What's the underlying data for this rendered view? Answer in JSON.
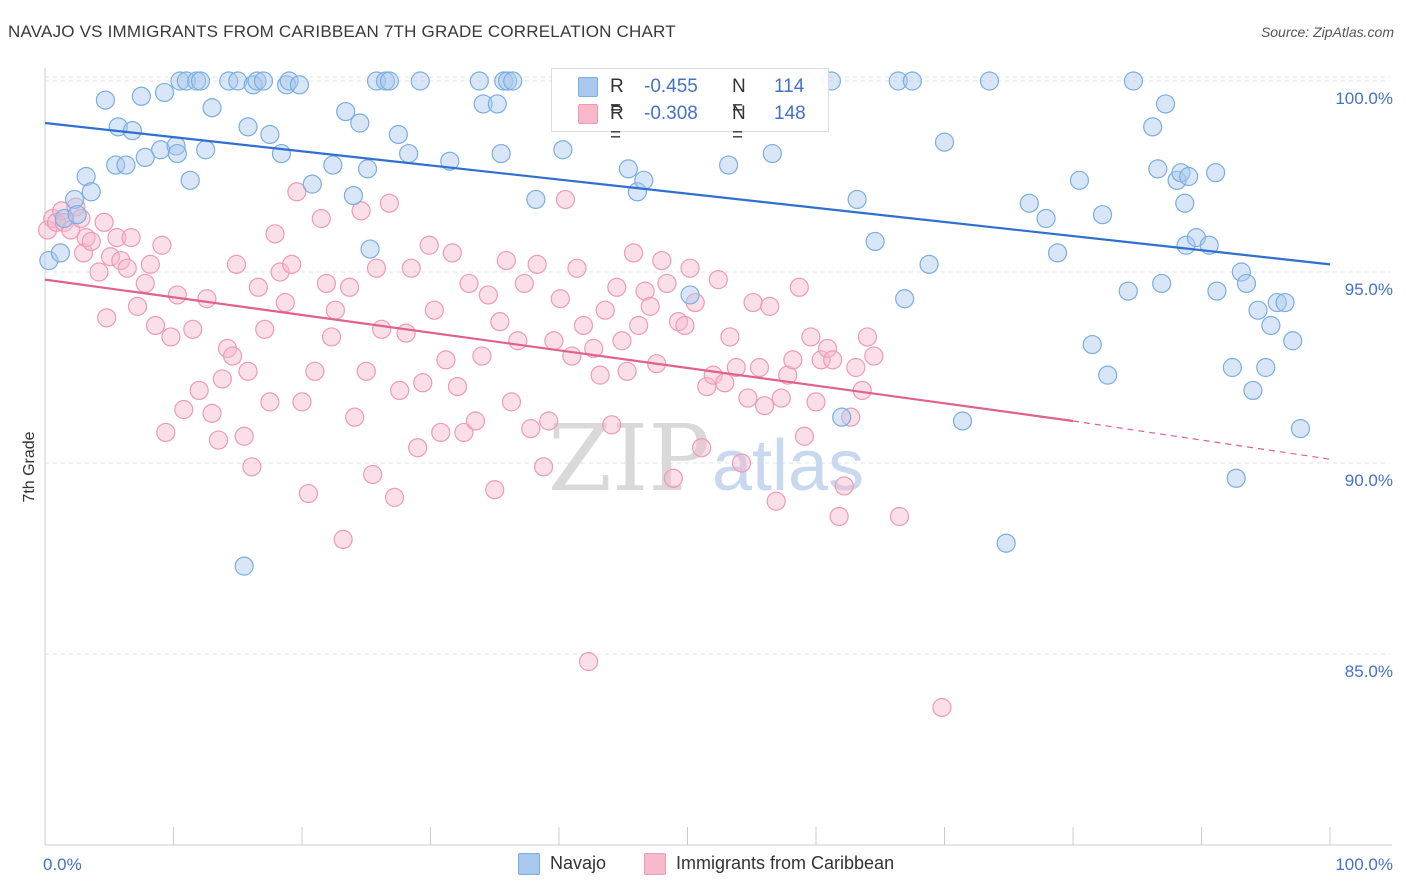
{
  "header": {
    "title": "NAVAJO VS IMMIGRANTS FROM CARIBBEAN 7TH GRADE CORRELATION CHART",
    "source": "Source: ZipAtlas.com"
  },
  "watermark": {
    "zip": "ZIP",
    "atlas": "atlas"
  },
  "colors": {
    "navajo_fill": "#a8c8ee",
    "navajo_stroke": "#7aaee0",
    "navajo_line": "#2f6fcf",
    "carib_fill": "#f7b8cc",
    "carib_stroke": "#ee9ab6",
    "carib_line": "#e0608e",
    "tick_text": "#4472c4",
    "grid": "#e2e2e2"
  },
  "legend_top": {
    "rows": [
      {
        "r_label": "R =",
        "r_value": "-0.455",
        "n_label": "N =",
        "n_value": "114"
      },
      {
        "r_label": "R =",
        "r_value": "-0.308",
        "n_label": "N =",
        "n_value": "148"
      }
    ]
  },
  "legend_bottom": {
    "items": [
      "Navajo",
      "Immigrants from Caribbean"
    ]
  },
  "chart_data": {
    "type": "scatter",
    "title": "NAVAJO VS IMMIGRANTS FROM CARIBBEAN 7TH GRADE CORRELATION CHART",
    "xlabel": "",
    "ylabel": "7th Grade",
    "xlim": [
      0,
      100
    ],
    "ylim": [
      80.5,
      100.5
    ],
    "x_tick_labels": [
      "0.0%",
      "100.0%"
    ],
    "y_ticks": [
      85,
      90,
      95,
      100
    ],
    "y_tick_labels": [
      "85.0%",
      "90.0%",
      "95.0%",
      "100.0%"
    ],
    "grid": true,
    "legend_position": "top-center",
    "series": [
      {
        "name": "Navajo",
        "trend": {
          "x": [
            0,
            100
          ],
          "y": [
            98.9,
            95.2
          ]
        },
        "points": [
          [
            0.3,
            95.3
          ],
          [
            1.2,
            95.5
          ],
          [
            1.5,
            96.4
          ],
          [
            2.3,
            96.9
          ],
          [
            2.5,
            96.5
          ],
          [
            3.2,
            97.5
          ],
          [
            3.6,
            97.1
          ],
          [
            4.7,
            99.5
          ],
          [
            5.5,
            97.8
          ],
          [
            5.7,
            98.8
          ],
          [
            6.3,
            97.8
          ],
          [
            6.8,
            98.7
          ],
          [
            7.5,
            99.6
          ],
          [
            7.8,
            98.0
          ],
          [
            9.0,
            98.2
          ],
          [
            9.3,
            99.7
          ],
          [
            10.2,
            98.3
          ],
          [
            10.3,
            98.1
          ],
          [
            10.5,
            100.0
          ],
          [
            11.0,
            100.0
          ],
          [
            11.3,
            97.4
          ],
          [
            11.8,
            100.0
          ],
          [
            12.1,
            100.0
          ],
          [
            12.5,
            98.2
          ],
          [
            13.0,
            99.3
          ],
          [
            14.3,
            100.0
          ],
          [
            15.0,
            100.0
          ],
          [
            15.5,
            87.3
          ],
          [
            15.8,
            98.8
          ],
          [
            16.2,
            99.9
          ],
          [
            16.5,
            100.0
          ],
          [
            17.0,
            100.0
          ],
          [
            17.5,
            98.6
          ],
          [
            18.4,
            98.1
          ],
          [
            18.8,
            99.9
          ],
          [
            19.0,
            100.0
          ],
          [
            19.8,
            99.9
          ],
          [
            20.8,
            97.3
          ],
          [
            22.4,
            97.8
          ],
          [
            23.4,
            99.2
          ],
          [
            24.0,
            97.0
          ],
          [
            24.5,
            98.9
          ],
          [
            25.1,
            97.7
          ],
          [
            25.3,
            95.6
          ],
          [
            25.8,
            100.0
          ],
          [
            26.5,
            100.0
          ],
          [
            26.8,
            100.0
          ],
          [
            27.5,
            98.6
          ],
          [
            28.3,
            98.1
          ],
          [
            29.2,
            100.0
          ],
          [
            31.5,
            97.9
          ],
          [
            33.8,
            100.0
          ],
          [
            34.1,
            99.4
          ],
          [
            35.2,
            99.4
          ],
          [
            35.5,
            98.1
          ],
          [
            35.7,
            100.0
          ],
          [
            36.0,
            100.0
          ],
          [
            36.4,
            100.0
          ],
          [
            38.2,
            96.9
          ],
          [
            40.3,
            98.2
          ],
          [
            45.4,
            97.7
          ],
          [
            46.1,
            97.1
          ],
          [
            46.6,
            97.4
          ],
          [
            50.2,
            94.4
          ],
          [
            53.2,
            97.8
          ],
          [
            56.6,
            98.1
          ],
          [
            58.5,
            100.0
          ],
          [
            59.2,
            100.0
          ],
          [
            61.2,
            100.0
          ],
          [
            62.0,
            91.2
          ],
          [
            63.2,
            96.9
          ],
          [
            64.6,
            95.8
          ],
          [
            66.4,
            100.0
          ],
          [
            66.9,
            94.3
          ],
          [
            67.5,
            100.0
          ],
          [
            68.8,
            95.2
          ],
          [
            70.0,
            98.4
          ],
          [
            71.4,
            91.1
          ],
          [
            73.5,
            100.0
          ],
          [
            74.8,
            87.9
          ],
          [
            76.6,
            96.8
          ],
          [
            77.9,
            96.4
          ],
          [
            78.8,
            95.5
          ],
          [
            80.5,
            97.4
          ],
          [
            81.5,
            93.1
          ],
          [
            82.3,
            96.5
          ],
          [
            82.7,
            92.3
          ],
          [
            84.3,
            94.5
          ],
          [
            84.7,
            100.0
          ],
          [
            86.2,
            98.8
          ],
          [
            86.6,
            97.7
          ],
          [
            86.9,
            94.7
          ],
          [
            87.2,
            99.4
          ],
          [
            88.1,
            97.4
          ],
          [
            88.4,
            97.6
          ],
          [
            88.7,
            96.8
          ],
          [
            88.8,
            95.7
          ],
          [
            89.0,
            97.5
          ],
          [
            89.6,
            95.9
          ],
          [
            90.6,
            95.7
          ],
          [
            91.1,
            97.6
          ],
          [
            91.2,
            94.5
          ],
          [
            92.4,
            92.5
          ],
          [
            92.7,
            89.6
          ],
          [
            93.1,
            95.0
          ],
          [
            93.5,
            94.7
          ],
          [
            94.0,
            91.9
          ],
          [
            94.4,
            94.0
          ],
          [
            95.0,
            92.5
          ],
          [
            95.4,
            93.6
          ],
          [
            95.9,
            94.2
          ],
          [
            96.5,
            94.2
          ],
          [
            97.1,
            93.2
          ],
          [
            97.7,
            90.9
          ]
        ]
      },
      {
        "name": "Immigrants from Caribbean",
        "trend": {
          "x": [
            0,
            80
          ],
          "y": [
            94.8,
            91.1
          ]
        },
        "trend_extension": {
          "x": [
            80,
            100
          ],
          "y": [
            91.1,
            90.1
          ]
        },
        "points": [
          [
            0.2,
            96.1
          ],
          [
            0.6,
            96.4
          ],
          [
            0.9,
            96.3
          ],
          [
            1.3,
            96.6
          ],
          [
            1.5,
            96.3
          ],
          [
            2.0,
            96.1
          ],
          [
            2.4,
            96.7
          ],
          [
            2.8,
            96.4
          ],
          [
            3.0,
            95.5
          ],
          [
            3.2,
            95.9
          ],
          [
            3.6,
            95.8
          ],
          [
            4.2,
            95.0
          ],
          [
            4.6,
            96.3
          ],
          [
            4.8,
            93.8
          ],
          [
            5.1,
            95.4
          ],
          [
            5.6,
            95.9
          ],
          [
            5.9,
            95.3
          ],
          [
            6.4,
            95.1
          ],
          [
            6.7,
            95.9
          ],
          [
            7.2,
            94.1
          ],
          [
            7.8,
            94.7
          ],
          [
            8.2,
            95.2
          ],
          [
            8.6,
            93.6
          ],
          [
            9.1,
            95.7
          ],
          [
            9.4,
            90.8
          ],
          [
            9.8,
            93.3
          ],
          [
            10.3,
            94.4
          ],
          [
            10.8,
            91.4
          ],
          [
            11.5,
            93.5
          ],
          [
            12.0,
            91.9
          ],
          [
            12.6,
            94.3
          ],
          [
            13.0,
            91.3
          ],
          [
            13.5,
            90.6
          ],
          [
            13.8,
            92.2
          ],
          [
            14.2,
            93.0
          ],
          [
            14.6,
            92.8
          ],
          [
            14.9,
            95.2
          ],
          [
            15.5,
            90.7
          ],
          [
            15.8,
            92.4
          ],
          [
            16.1,
            89.9
          ],
          [
            16.6,
            94.6
          ],
          [
            17.1,
            93.5
          ],
          [
            17.5,
            91.6
          ],
          [
            17.9,
            96.0
          ],
          [
            18.3,
            95.0
          ],
          [
            18.7,
            94.2
          ],
          [
            19.2,
            95.2
          ],
          [
            19.6,
            97.1
          ],
          [
            20.0,
            91.6
          ],
          [
            20.5,
            89.2
          ],
          [
            21.0,
            92.4
          ],
          [
            21.5,
            96.4
          ],
          [
            21.9,
            94.7
          ],
          [
            22.3,
            93.3
          ],
          [
            22.6,
            94.0
          ],
          [
            23.2,
            88.0
          ],
          [
            23.7,
            94.6
          ],
          [
            24.1,
            91.2
          ],
          [
            24.6,
            96.6
          ],
          [
            25.0,
            92.4
          ],
          [
            25.5,
            89.7
          ],
          [
            25.8,
            95.1
          ],
          [
            26.2,
            93.5
          ],
          [
            26.8,
            96.8
          ],
          [
            27.2,
            89.1
          ],
          [
            27.6,
            91.9
          ],
          [
            28.1,
            93.4
          ],
          [
            28.5,
            95.1
          ],
          [
            29.0,
            90.4
          ],
          [
            29.4,
            92.1
          ],
          [
            29.9,
            95.7
          ],
          [
            30.3,
            94.0
          ],
          [
            30.8,
            90.8
          ],
          [
            31.2,
            92.7
          ],
          [
            31.7,
            95.5
          ],
          [
            32.1,
            92.0
          ],
          [
            32.6,
            90.8
          ],
          [
            33.0,
            94.7
          ],
          [
            33.5,
            91.1
          ],
          [
            34.0,
            92.8
          ],
          [
            34.5,
            94.4
          ],
          [
            35.0,
            89.3
          ],
          [
            35.4,
            93.7
          ],
          [
            35.9,
            95.3
          ],
          [
            36.3,
            91.6
          ],
          [
            36.8,
            93.2
          ],
          [
            37.3,
            94.7
          ],
          [
            37.8,
            90.9
          ],
          [
            38.3,
            95.2
          ],
          [
            38.8,
            89.9
          ],
          [
            39.2,
            91.1
          ],
          [
            39.6,
            93.2
          ],
          [
            40.1,
            94.3
          ],
          [
            40.5,
            96.9
          ],
          [
            41.0,
            92.8
          ],
          [
            41.4,
            95.1
          ],
          [
            41.9,
            93.6
          ],
          [
            42.3,
            84.8
          ],
          [
            42.7,
            93.0
          ],
          [
            43.2,
            92.3
          ],
          [
            43.6,
            94.0
          ],
          [
            44.1,
            91.0
          ],
          [
            44.5,
            94.6
          ],
          [
            44.9,
            93.2
          ],
          [
            45.3,
            92.4
          ],
          [
            45.8,
            95.5
          ],
          [
            46.2,
            93.6
          ],
          [
            46.7,
            94.5
          ],
          [
            47.1,
            94.1
          ],
          [
            47.6,
            92.6
          ],
          [
            48.0,
            95.3
          ],
          [
            48.4,
            94.7
          ],
          [
            48.9,
            89.6
          ],
          [
            49.3,
            93.7
          ],
          [
            49.8,
            93.6
          ],
          [
            50.2,
            95.1
          ],
          [
            50.6,
            94.2
          ],
          [
            51.1,
            90.4
          ],
          [
            51.5,
            92.0
          ],
          [
            52.0,
            92.3
          ],
          [
            52.4,
            94.8
          ],
          [
            52.9,
            92.1
          ],
          [
            53.3,
            93.3
          ],
          [
            53.8,
            92.5
          ],
          [
            54.2,
            90.0
          ],
          [
            54.7,
            91.7
          ],
          [
            55.1,
            94.2
          ],
          [
            55.6,
            92.5
          ],
          [
            56.0,
            91.5
          ],
          [
            56.4,
            94.1
          ],
          [
            56.9,
            89.0
          ],
          [
            57.3,
            91.7
          ],
          [
            57.8,
            92.3
          ],
          [
            58.2,
            92.7
          ],
          [
            58.7,
            94.6
          ],
          [
            59.1,
            90.7
          ],
          [
            59.6,
            93.3
          ],
          [
            60.0,
            91.6
          ],
          [
            60.4,
            92.7
          ],
          [
            60.9,
            93.0
          ],
          [
            61.3,
            92.7
          ],
          [
            61.8,
            88.6
          ],
          [
            62.2,
            89.4
          ],
          [
            62.7,
            91.2
          ],
          [
            63.1,
            92.5
          ],
          [
            63.6,
            91.9
          ],
          [
            64.0,
            93.3
          ],
          [
            64.5,
            92.8
          ],
          [
            66.5,
            88.6
          ],
          [
            69.8,
            83.6
          ]
        ]
      }
    ]
  }
}
